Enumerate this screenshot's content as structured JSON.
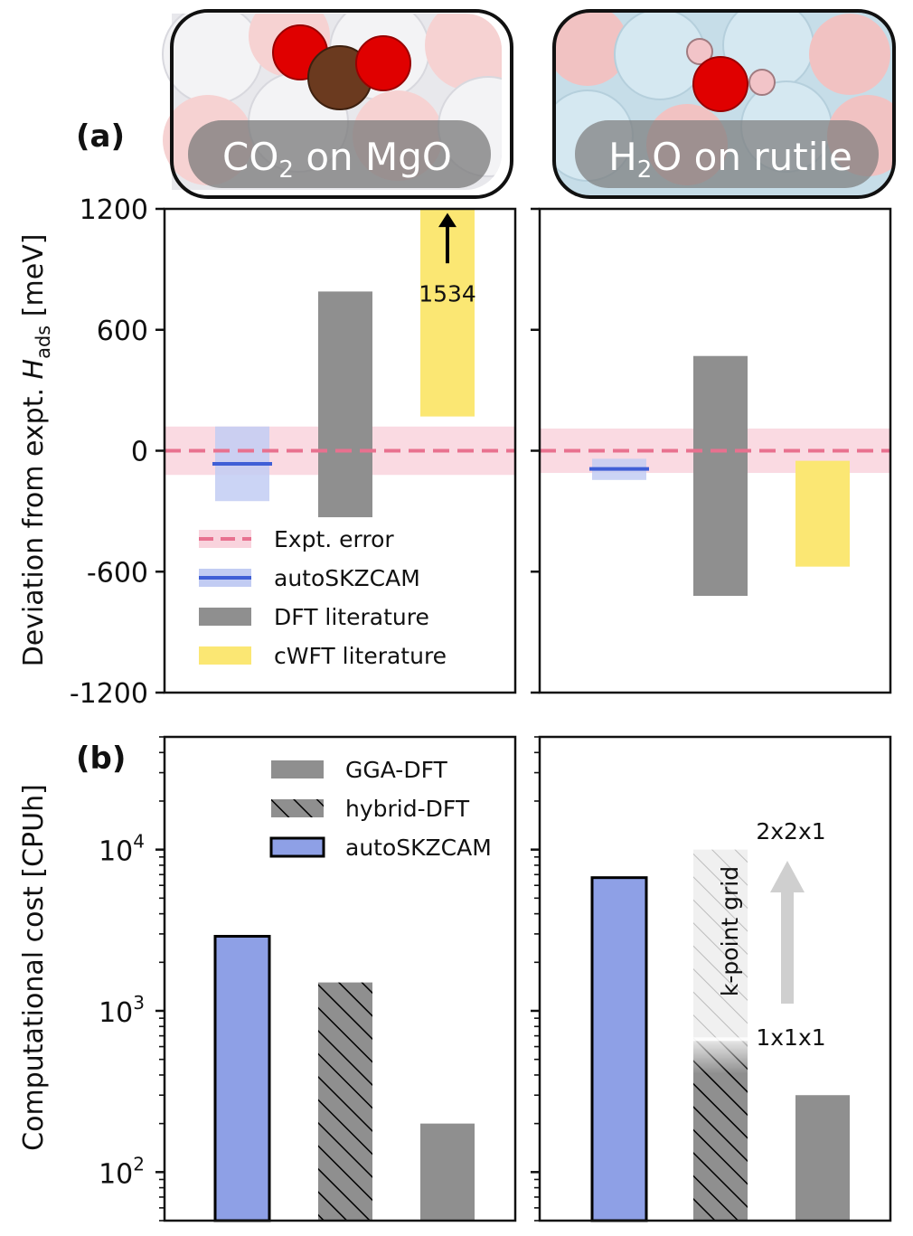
{
  "panels": {
    "a": "(a)",
    "b": "(b)"
  },
  "molecules": [
    {
      "formula": "CO",
      "sub": "2",
      "rest": " on MgO"
    },
    {
      "formula": "H",
      "sub": "2",
      "rest": "O on rutile"
    }
  ],
  "colors": {
    "expt": "#e8718f",
    "expt_band": "#f9d3dd",
    "autoskzcam": "#3f5fd6",
    "autoskzcam_band": "#c2ccf3",
    "autoskzcam_bar": "#8ea0e6",
    "dft": "#8f8f8f",
    "cwft": "#fbe773"
  },
  "chart_data": [
    {
      "type": "bar",
      "panel": "a-left",
      "ylabel_main": "Deviation from expt. ",
      "ylabel_italic": "H",
      "ylabel_sub": "ads",
      "ylabel_unit": " [meV]",
      "ylim": [
        -1200,
        1200
      ],
      "yticks": [
        1200,
        600,
        0,
        -600,
        -1200
      ],
      "ytick_labels": [
        "1200",
        "600",
        "0",
        "-600",
        "-1200"
      ],
      "expt_error": 120,
      "autoskzcam": {
        "value": -65,
        "low": -250,
        "high": 120
      },
      "dft": {
        "low": -330,
        "high": 790
      },
      "cwft": {
        "low": 170,
        "high": 1534,
        "annotation": "1534"
      },
      "legend": [
        "Expt. error",
        "autoSKZCAM",
        "DFT literature",
        "cWFT literature"
      ]
    },
    {
      "type": "bar",
      "panel": "a-right",
      "ylim": [
        -1200,
        1200
      ],
      "expt_error": 110,
      "autoskzcam": {
        "value": -90,
        "low": -145,
        "high": -40
      },
      "dft": {
        "low": -720,
        "high": 470
      },
      "cwft": {
        "low": -575,
        "high": -50
      }
    },
    {
      "type": "bar",
      "panel": "b-left",
      "ylabel": "Computational cost [CPUh]",
      "yscale": "log",
      "ylim": [
        50,
        50000
      ],
      "yticks": [
        100,
        1000,
        10000
      ],
      "ytick_base": "10",
      "ytick_exp": [
        "2",
        "3",
        "4"
      ],
      "categories": [
        "autoSKZCAM",
        "hybrid-DFT",
        "GGA-DFT"
      ],
      "values": [
        2900,
        1500,
        200
      ],
      "legend": [
        "GGA-DFT",
        "hybrid-DFT",
        "autoSKZCAM"
      ]
    },
    {
      "type": "bar",
      "panel": "b-right",
      "yscale": "log",
      "ylim": [
        50,
        50000
      ],
      "categories": [
        "autoSKZCAM",
        "hybrid-DFT",
        "GGA-DFT"
      ],
      "values": [
        6700,
        650,
        300
      ],
      "hybrid_kpoint_max": 10000,
      "annotations": {
        "high": "2x2x1",
        "low": "1x1x1",
        "arrow_label": "k-point grid"
      }
    }
  ]
}
